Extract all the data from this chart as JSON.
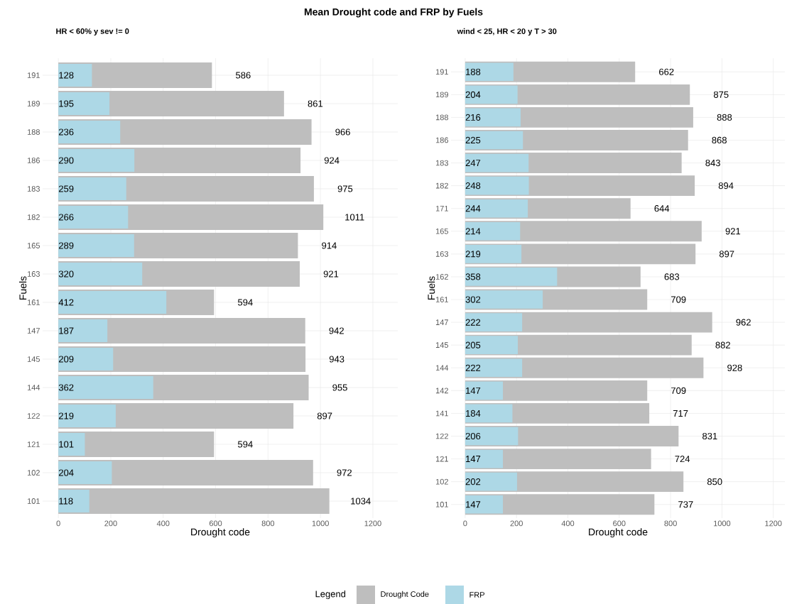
{
  "chart_data": [
    {
      "type": "bar",
      "orientation": "horizontal",
      "title": "Mean Drought code and FRP by Fuels",
      "subtitle": "HR < 60% y sev != 0",
      "xlabel": "Drought code",
      "ylabel": "Fuels",
      "legend_title": "Legend",
      "legend": "bottom",
      "grid": true,
      "data_labels": true,
      "categories": [
        "191",
        "189",
        "188",
        "186",
        "183",
        "182",
        "165",
        "163",
        "161",
        "147",
        "145",
        "144",
        "122",
        "121",
        "102",
        "101"
      ],
      "series": [
        {
          "name": "Drought Code",
          "color": "#bebebe",
          "values": [
            586,
            861,
            966,
            924,
            975,
            1011,
            914,
            921,
            594,
            942,
            943,
            955,
            897,
            594,
            972,
            1034
          ]
        },
        {
          "name": "FRP",
          "color": "#add8e6",
          "values": [
            128,
            195,
            236,
            290,
            259,
            266,
            289,
            320,
            412,
            187,
            209,
            362,
            219,
            101,
            204,
            118
          ]
        }
      ],
      "xlim": [
        -60,
        1295
      ],
      "xticks": [
        0,
        200,
        400,
        600,
        800,
        1000,
        1200
      ]
    },
    {
      "type": "bar",
      "orientation": "horizontal",
      "subtitle": "wind < 25, HR < 20 y T > 30",
      "xlabel": "Drought code",
      "ylabel": "Fuels",
      "grid": true,
      "data_labels": true,
      "categories": [
        "191",
        "189",
        "188",
        "186",
        "183",
        "182",
        "171",
        "165",
        "163",
        "162",
        "161",
        "147",
        "145",
        "144",
        "142",
        "141",
        "122",
        "121",
        "102",
        "101"
      ],
      "series": [
        {
          "color": "#bebebe",
          "values": [
            662,
            875,
            888,
            868,
            843,
            894,
            644,
            921,
            897,
            683,
            709,
            962,
            882,
            928,
            709,
            717,
            831,
            724,
            850,
            737
          ]
        },
        {
          "color": "#add8e6",
          "values": [
            188,
            204,
            216,
            225,
            247,
            248,
            244,
            214,
            219,
            358,
            302,
            222,
            205,
            222,
            147,
            184,
            206,
            147,
            202,
            147
          ]
        }
      ],
      "xlim": [
        -55,
        1245
      ],
      "xticks": [
        0,
        200,
        400,
        600,
        800,
        1000,
        1200
      ]
    }
  ]
}
